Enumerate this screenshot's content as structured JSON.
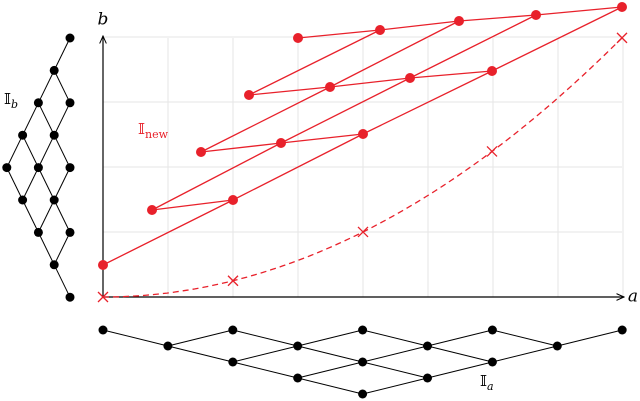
{
  "axes": {
    "vertical": "b",
    "horizontal": "a"
  },
  "labels": {
    "lattice_b": {
      "symbol": "𝕀",
      "subscript": "b"
    },
    "lattice_new": {
      "symbol": "𝕀",
      "subscript": "new"
    },
    "lattice_a": {
      "symbol": "𝕀",
      "subscript": "a"
    }
  }
}
